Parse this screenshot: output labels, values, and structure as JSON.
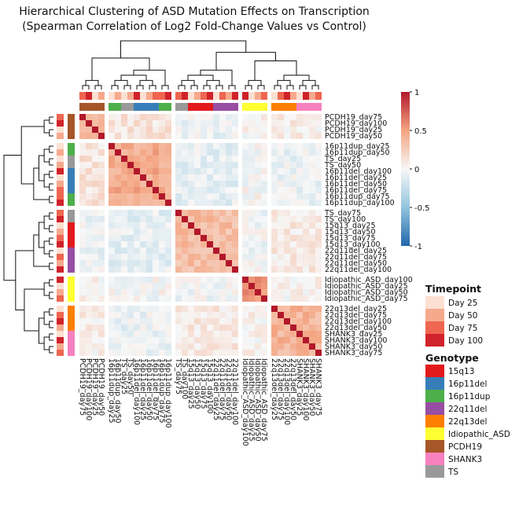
{
  "chart_data": {
    "type": "heatmap",
    "title_lines": [
      "Hierarchical Clustering of ASD Mutation Effects on Transcription",
      "(Spearman Correlation of Log2 Fold-Change Values vs Control)"
    ],
    "row_labels": [
      "PCDH19_day75",
      "PCDH19_day100",
      "PCDH19_day25",
      "PCDH19_day50",
      "16p11dup_day25",
      "16p11dup_day50",
      "TS_day25",
      "TS_day50",
      "16p11del_day100",
      "16p11del_day25",
      "16p11del_day50",
      "16p11del_day75",
      "16p11dup_day75",
      "16p11dup_day100",
      "TS_day75",
      "TS_day100",
      "15q13_day25",
      "15q13_day50",
      "15q13_day75",
      "15q13_day100",
      "22q11del_day25",
      "22q11del_day75",
      "22q11del_day50",
      "22q11del_day100",
      "Idiopathic_ASD_day100",
      "Idiopathic_ASD_day25",
      "Idiopathic_ASD_day50",
      "Idiopathic_ASD_day75",
      "22q13del_day25",
      "22q13del_day75",
      "22q13del_day100",
      "22q13del_day50",
      "SHANK3_day25",
      "SHANK3_day100",
      "SHANK3_day50",
      "SHANK3_day75"
    ],
    "row_groups": [
      4,
      10,
      10,
      4,
      8
    ],
    "col_groups": [
      4,
      10,
      10,
      4,
      8
    ],
    "col_labels": [
      "PCDH19_day75",
      "PCDH19_day100",
      "PCDH19_day25",
      "PCDH19_day50",
      "16p11dup_day25",
      "16p11dup_day50",
      "TS_day25",
      "TS_day50",
      "16p11del_day100",
      "16p11del_day25",
      "16p11del_day50",
      "16p11del_day75",
      "16p11dup_day75",
      "16p11dup_day100",
      "TS_day75",
      "TS_day100",
      "15q13_day25",
      "15q13_day50",
      "15q13_day75",
      "15q13_day100",
      "22q11del_day25",
      "22q11del_day75",
      "22q11del_day50",
      "22q11del_day100",
      "Idiopathic_ASD_day100",
      "Idiopathic_ASD_day25",
      "Idiopathic_ASD_day50",
      "Idiopathic_ASD_day75",
      "22q13del_day25",
      "22q13del_day75",
      "22q13del_day100",
      "22q13del_day50",
      "SHANK3_day25",
      "SHANK3_day100",
      "SHANK3_day50",
      "SHANK3_day75"
    ],
    "block_correlation": [
      [
        0.45,
        0.12,
        -0.05,
        0.02,
        0.05
      ],
      [
        0.12,
        0.45,
        -0.08,
        0.0,
        -0.05
      ],
      [
        -0.05,
        -0.08,
        0.35,
        -0.03,
        0.08
      ],
      [
        0.02,
        0.0,
        -0.03,
        0.55,
        0.03
      ],
      [
        0.05,
        -0.05,
        0.08,
        0.03,
        0.4
      ]
    ],
    "diagonal_value": 1,
    "colorbar": {
      "min": -1,
      "max": 1,
      "ticks": [
        1,
        0.5,
        0,
        -0.5,
        -1
      ],
      "tick_labels": [
        "1",
        "0.5",
        "0",
        "-0.5",
        "-1"
      ]
    },
    "timepoint_legend": {
      "title": "Timepoint",
      "items": [
        {
          "label": "Day 25",
          "color": "#fce0d2"
        },
        {
          "label": "Day 50",
          "color": "#f6a98c"
        },
        {
          "label": "Day 75",
          "color": "#ee6650"
        },
        {
          "label": "Day 100",
          "color": "#d0222a"
        }
      ]
    },
    "genotype_legend": {
      "title": "Genotype",
      "items": [
        {
          "label": "15q13",
          "color": "#e31a1c"
        },
        {
          "label": "16p11del",
          "color": "#377eb8"
        },
        {
          "label": "16p11dup",
          "color": "#4daf4a"
        },
        {
          "label": "22q11del",
          "color": "#984ea3"
        },
        {
          "label": "22q13del",
          "color": "#ff7f00"
        },
        {
          "label": "Idiopathic_ASD",
          "color": "#ffff33"
        },
        {
          "label": "PCDH19",
          "color": "#a65628"
        },
        {
          "label": "SHANK3",
          "color": "#f781bf"
        },
        {
          "label": "TS",
          "color": "#999999"
        }
      ]
    }
  }
}
